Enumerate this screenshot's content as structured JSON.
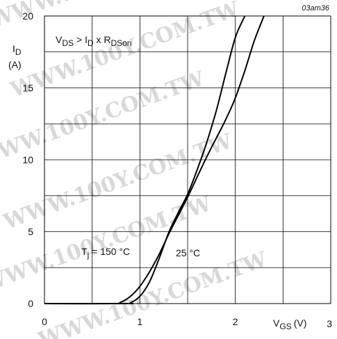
{
  "figure_code": "03am36",
  "watermark": "WWW.100Y.COM.TW",
  "chart_data": {
    "type": "line",
    "xlim": [
      0,
      3
    ],
    "ylim": [
      0,
      20
    ],
    "grid": true,
    "x_ticks": [
      "0",
      "1",
      "2",
      "3"
    ],
    "y_ticks": [
      "0",
      "5",
      "10",
      "15",
      "20"
    ],
    "xlabel": {
      "main": "V",
      "sub": "GS",
      "unit": "(V)"
    },
    "ylabel": {
      "main": "I",
      "sub": "D",
      "unit": "(A)"
    },
    "condition": {
      "p1": "V",
      "s1": "DS",
      "p2": " > I",
      "s2": "D",
      "p3": " x R",
      "s3": "DSon"
    },
    "series": [
      {
        "name": "Tj = 150 °C",
        "label": {
          "main": "T",
          "sub": "j",
          "rest": " = 150 °C"
        },
        "x": [
          0.0,
          0.7,
          0.8,
          0.9,
          1.0,
          1.1,
          1.2,
          1.3,
          1.4,
          1.5,
          1.6,
          1.7,
          1.8,
          1.9,
          2.0,
          2.1,
          2.2,
          2.3
        ],
        "y": [
          0.0,
          0.0,
          0.1,
          0.5,
          1.2,
          2.2,
          3.4,
          4.8,
          6.1,
          7.4,
          8.8,
          10.2,
          11.5,
          12.8,
          14.3,
          16.2,
          18.3,
          20.0
        ]
      },
      {
        "name": "25 °C",
        "label": {
          "main": "25 °C"
        },
        "x": [
          0.0,
          0.85,
          0.9,
          1.0,
          1.1,
          1.2,
          1.3,
          1.4,
          1.5,
          1.6,
          1.7,
          1.8,
          1.9,
          2.0,
          2.1,
          2.2
        ],
        "y": [
          0.0,
          0.0,
          0.05,
          0.5,
          1.5,
          3.1,
          4.9,
          6.3,
          7.6,
          9.3,
          11.2,
          13.4,
          16.0,
          18.5,
          20.0,
          20.0
        ]
      }
    ]
  }
}
